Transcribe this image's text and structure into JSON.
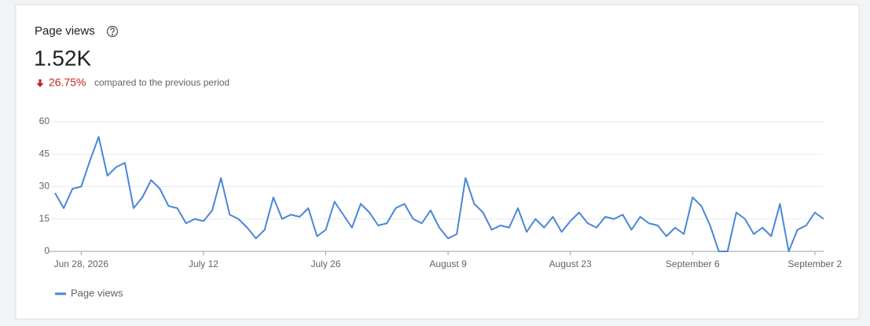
{
  "chart_data": {
    "type": "line",
    "title": "Page views",
    "metric_value": "1.52K",
    "change": "26.75%",
    "change_text": "compared to the previous period",
    "categories": [
      null,
      null,
      null,
      "Jun 28, 2026",
      null,
      null,
      null,
      null,
      null,
      null,
      null,
      null,
      null,
      null,
      null,
      null,
      null,
      "July 12",
      null,
      null,
      null,
      null,
      null,
      null,
      null,
      null,
      null,
      null,
      null,
      null,
      null,
      "July 26",
      null,
      null,
      null,
      null,
      null,
      null,
      null,
      null,
      null,
      null,
      null,
      null,
      null,
      "August 9",
      null,
      null,
      null,
      null,
      null,
      null,
      null,
      null,
      null,
      null,
      null,
      null,
      null,
      "August 23",
      null,
      null,
      null,
      null,
      null,
      null,
      null,
      null,
      null,
      null,
      null,
      null,
      null,
      "September 6",
      null,
      null,
      null,
      null,
      null,
      null,
      null,
      null,
      null,
      null,
      null,
      null,
      null,
      "September 2",
      null
    ],
    "series": [
      {
        "name": "Page views",
        "color": "#4a86d8",
        "values": [
          27,
          20,
          29,
          30,
          42,
          53,
          35,
          39,
          41,
          20,
          25,
          33,
          29,
          21,
          20,
          13,
          15,
          14,
          19,
          34,
          17,
          15,
          11,
          6,
          10,
          25,
          15,
          17,
          16,
          20,
          7,
          10,
          23,
          17,
          11,
          22,
          18,
          12,
          13,
          20,
          22,
          15,
          13,
          19,
          11,
          6,
          8,
          34,
          22,
          18,
          10,
          12,
          11,
          20,
          9,
          15,
          11,
          16,
          9,
          14,
          18,
          13,
          11,
          16,
          15,
          17,
          10,
          16,
          13,
          12,
          7,
          11,
          8,
          25,
          21,
          12,
          0,
          0,
          18,
          15,
          8,
          11,
          7,
          22,
          0,
          10,
          12,
          18,
          15
        ]
      }
    ],
    "ylim": [
      0,
      60
    ],
    "yticks": [
      0,
      15,
      30,
      45,
      60
    ],
    "grid": true
  }
}
